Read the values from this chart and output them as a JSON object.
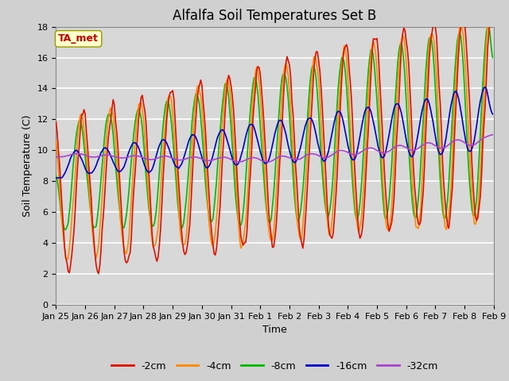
{
  "title": "Alfalfa Soil Temperatures Set B",
  "xlabel": "Time",
  "ylabel": "Soil Temperature (C)",
  "ylim": [
    0,
    18
  ],
  "yticks": [
    0,
    2,
    4,
    6,
    8,
    10,
    12,
    14,
    16,
    18
  ],
  "annotation_label": "TA_met",
  "annotation_color": "#cc0000",
  "annotation_bg": "#ffffcc",
  "annotation_edge": "#999900",
  "line_colors": {
    "-2cm": "#dd1100",
    "-4cm": "#ff8800",
    "-8cm": "#00bb00",
    "-16cm": "#0000cc",
    "-32cm": "#aa44cc"
  },
  "legend_labels": [
    "-2cm",
    "-4cm",
    "-8cm",
    "-16cm",
    "-32cm"
  ],
  "fig_bg": "#d0d0d0",
  "plot_bg": "#d8d8d8",
  "grid_color": "#ffffff",
  "title_fontsize": 12,
  "axis_label_fontsize": 9,
  "tick_fontsize": 8,
  "day_labels": [
    "Jan 25",
    "Jan 26",
    "Jan 27",
    "Jan 28",
    "Jan 29",
    "Jan 30",
    "Jan 31",
    "Feb 1",
    "Feb 2",
    "Feb 3",
    "Feb 4",
    "Feb 5",
    "Feb 6",
    "Feb 7",
    "Feb 8",
    "Feb 9"
  ],
  "lw": 1.2
}
